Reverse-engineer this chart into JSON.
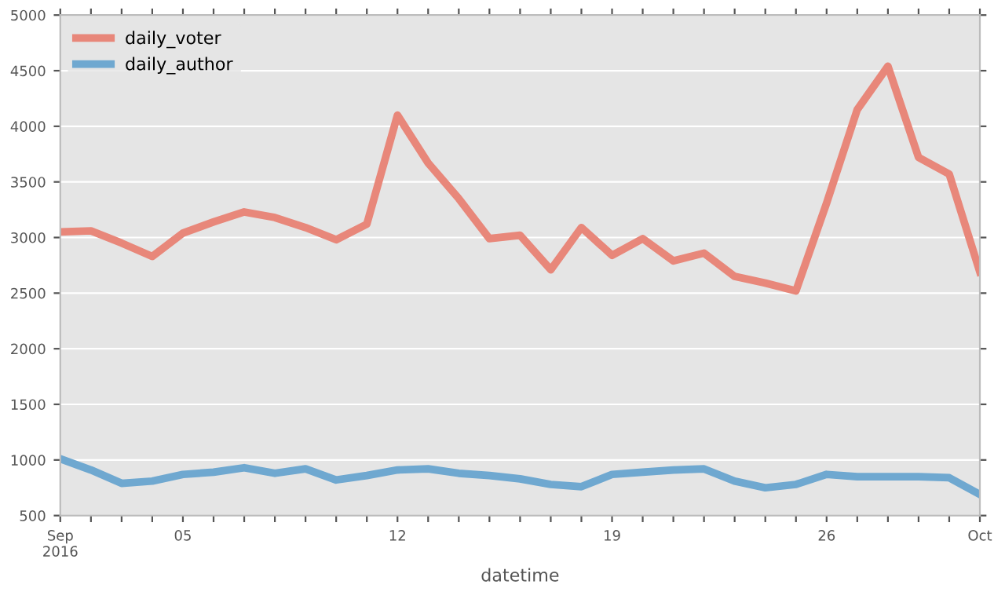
{
  "chart_data": {
    "type": "line",
    "xlabel": "datetime",
    "x": [
      "2016-09-01",
      "2016-09-02",
      "2016-09-03",
      "2016-09-04",
      "2016-09-05",
      "2016-09-06",
      "2016-09-07",
      "2016-09-08",
      "2016-09-09",
      "2016-09-10",
      "2016-09-11",
      "2016-09-12",
      "2016-09-13",
      "2016-09-14",
      "2016-09-15",
      "2016-09-16",
      "2016-09-17",
      "2016-09-18",
      "2016-09-19",
      "2016-09-20",
      "2016-09-21",
      "2016-09-22",
      "2016-09-23",
      "2016-09-24",
      "2016-09-25",
      "2016-09-26",
      "2016-09-27",
      "2016-09-28",
      "2016-09-29",
      "2016-09-30",
      "2016-10-01"
    ],
    "series": [
      {
        "name": "daily_voter",
        "color": "#e8877a",
        "values": [
          3050,
          3060,
          2950,
          2830,
          3040,
          3140,
          3230,
          3180,
          3090,
          2980,
          3120,
          4100,
          3670,
          3350,
          2990,
          3020,
          2710,
          3090,
          2840,
          2990,
          2790,
          2860,
          2650,
          2590,
          2520,
          3310,
          4150,
          4540,
          3720,
          3570,
          2690
        ]
      },
      {
        "name": "daily_author",
        "color": "#6fa8d0",
        "values": [
          1010,
          910,
          790,
          810,
          870,
          890,
          930,
          880,
          920,
          820,
          860,
          910,
          920,
          880,
          860,
          830,
          780,
          760,
          870,
          890,
          910,
          920,
          810,
          750,
          780,
          870,
          850,
          850,
          850,
          840,
          690
        ]
      }
    ],
    "xlim": [
      "2016-09-01",
      "2016-10-01"
    ],
    "xticks": [
      {
        "value": "2016-09-01",
        "label": "Sep\n2016"
      },
      {
        "value": "2016-09-02",
        "label": null
      },
      {
        "value": "2016-09-03",
        "label": null
      },
      {
        "value": "2016-09-04",
        "label": null
      },
      {
        "value": "2016-09-05",
        "label": "05"
      },
      {
        "value": "2016-09-06",
        "label": null
      },
      {
        "value": "2016-09-07",
        "label": null
      },
      {
        "value": "2016-09-08",
        "label": null
      },
      {
        "value": "2016-09-09",
        "label": null
      },
      {
        "value": "2016-09-10",
        "label": null
      },
      {
        "value": "2016-09-11",
        "label": null
      },
      {
        "value": "2016-09-12",
        "label": "12"
      },
      {
        "value": "2016-09-13",
        "label": null
      },
      {
        "value": "2016-09-14",
        "label": null
      },
      {
        "value": "2016-09-15",
        "label": null
      },
      {
        "value": "2016-09-16",
        "label": null
      },
      {
        "value": "2016-09-17",
        "label": null
      },
      {
        "value": "2016-09-18",
        "label": null
      },
      {
        "value": "2016-09-19",
        "label": "19"
      },
      {
        "value": "2016-09-20",
        "label": null
      },
      {
        "value": "2016-09-21",
        "label": null
      },
      {
        "value": "2016-09-22",
        "label": null
      },
      {
        "value": "2016-09-23",
        "label": null
      },
      {
        "value": "2016-09-24",
        "label": null
      },
      {
        "value": "2016-09-25",
        "label": null
      },
      {
        "value": "2016-09-26",
        "label": "26"
      },
      {
        "value": "2016-09-27",
        "label": null
      },
      {
        "value": "2016-09-28",
        "label": null
      },
      {
        "value": "2016-09-29",
        "label": null
      },
      {
        "value": "2016-09-30",
        "label": null
      },
      {
        "value": "2016-10-01",
        "label": "Oct"
      }
    ],
    "ylim": [
      500,
      5000
    ],
    "yticks": [
      500,
      1000,
      1500,
      2000,
      2500,
      3000,
      3500,
      4000,
      4500,
      5000
    ],
    "grid": "y",
    "legend": "top left",
    "line_style": "solid"
  }
}
